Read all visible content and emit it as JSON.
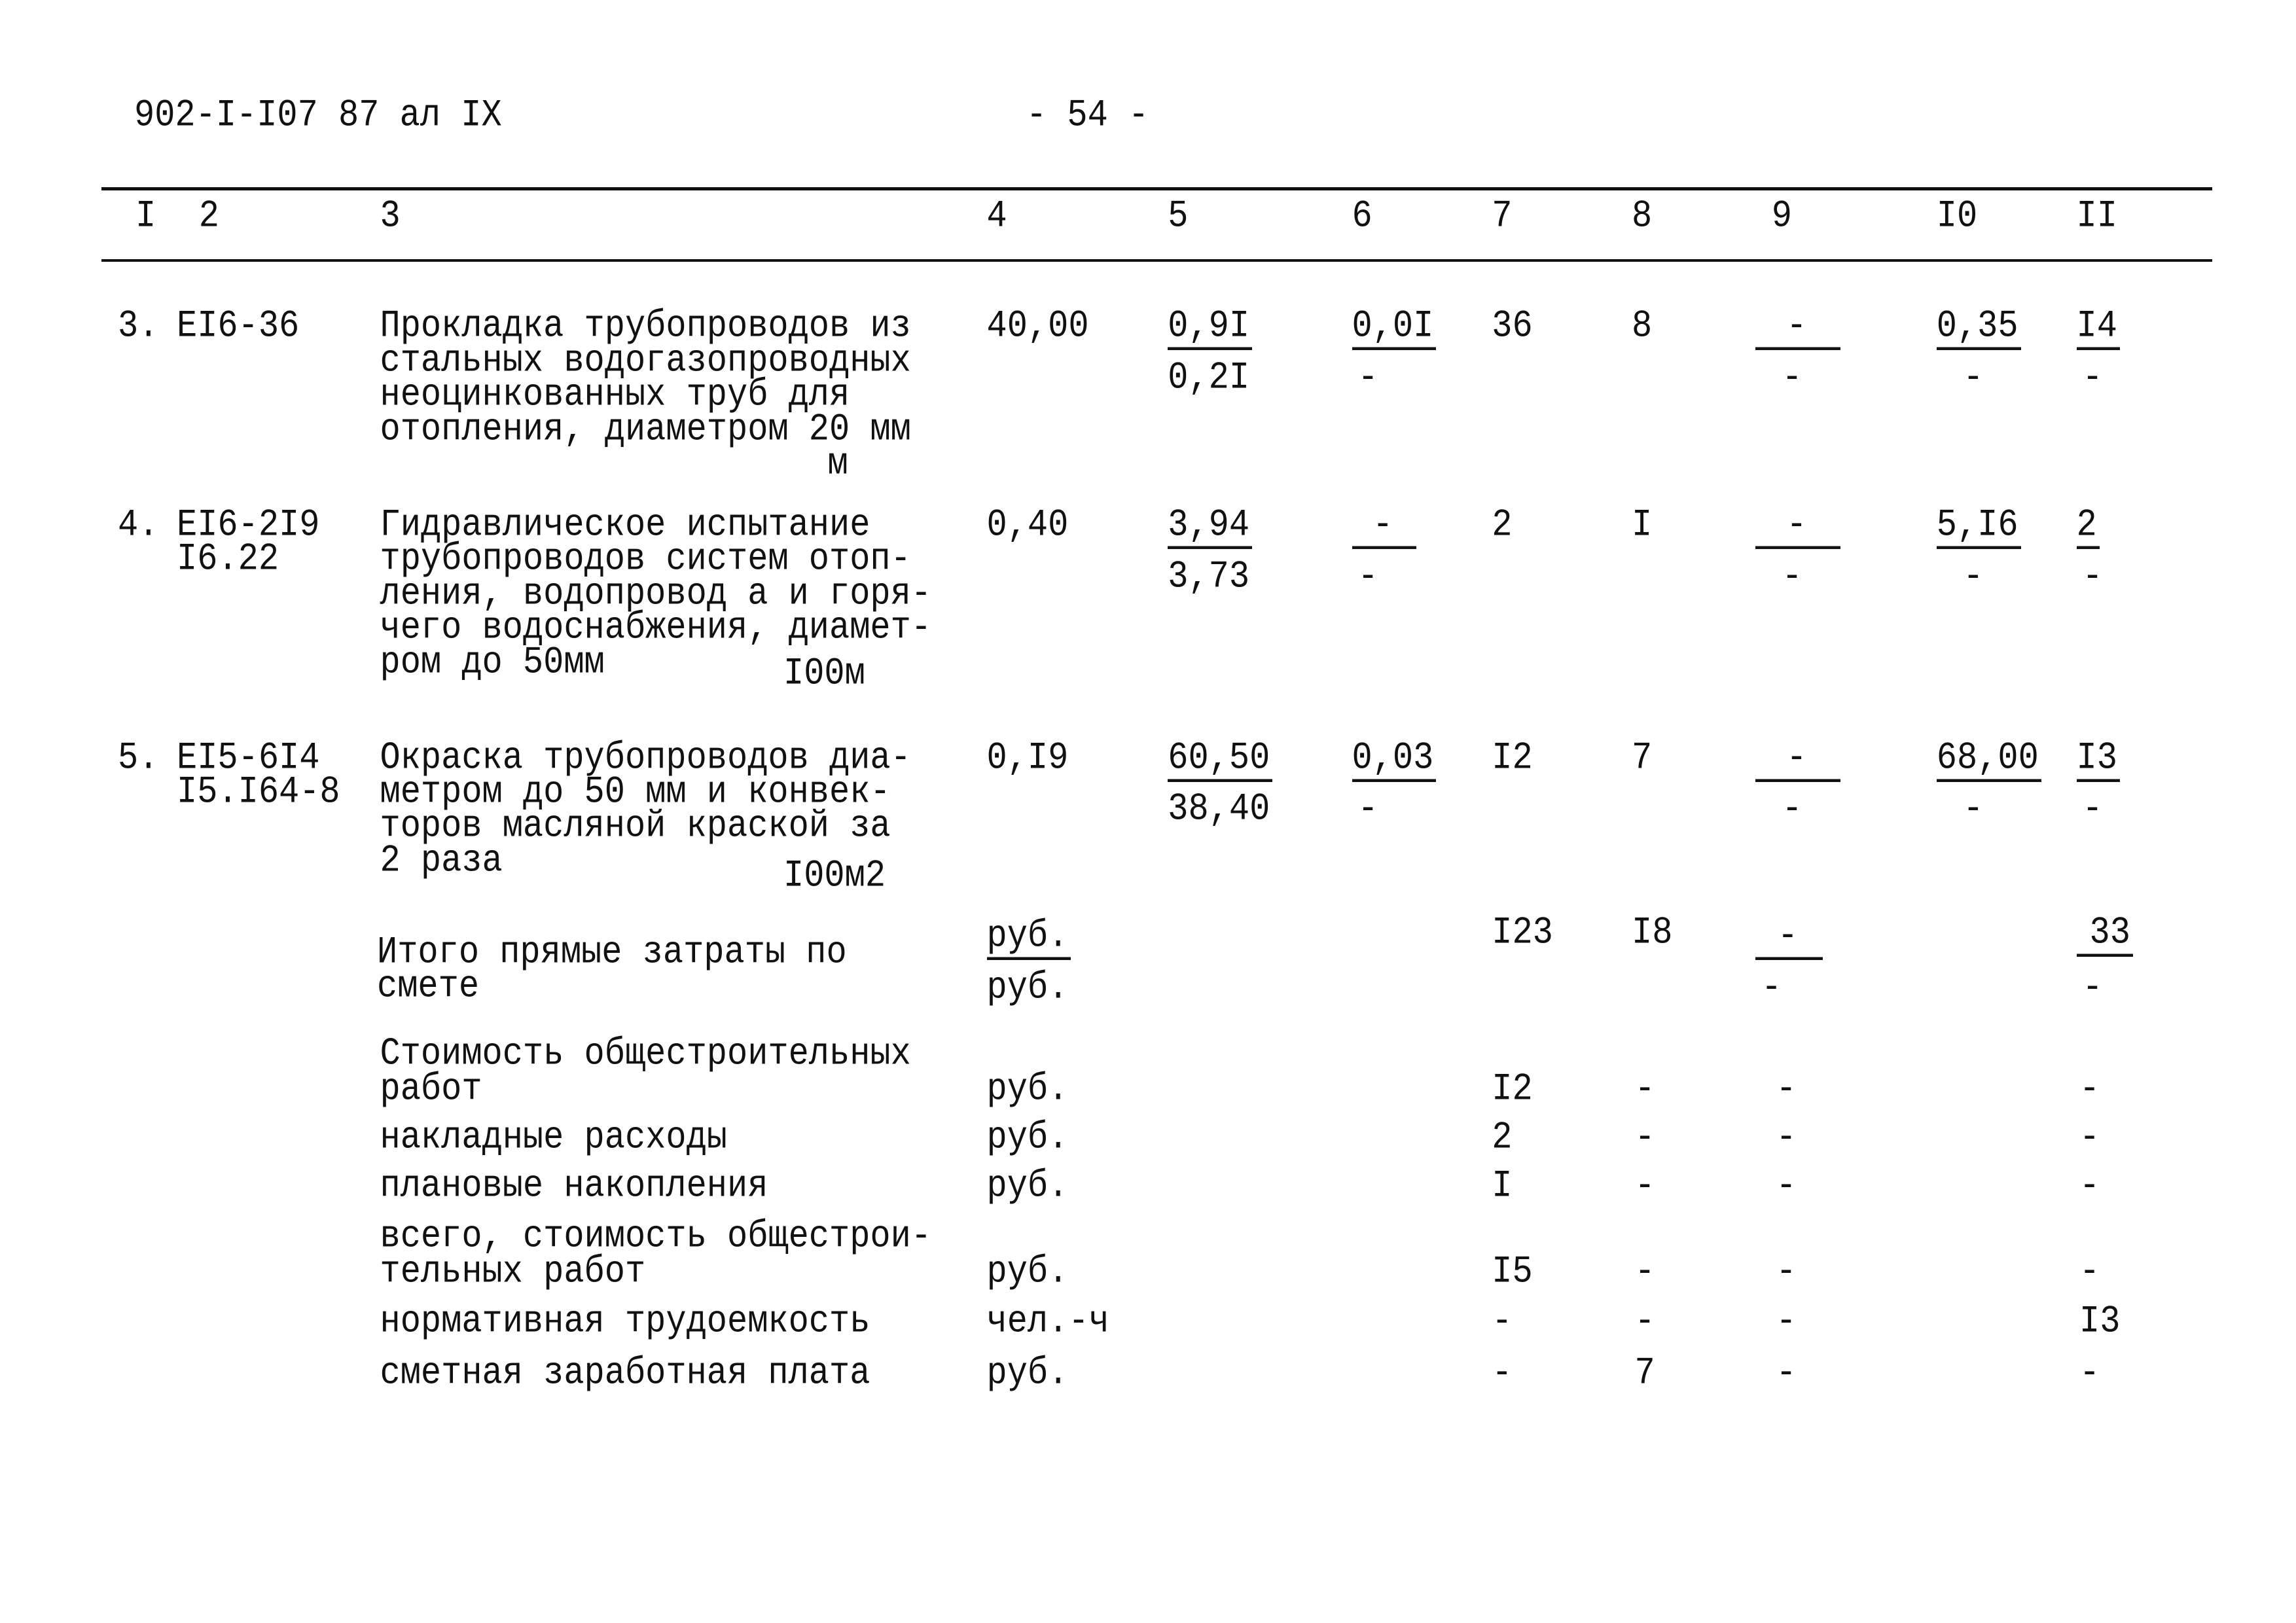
{
  "header": {
    "doc_code": "902-I-I07 87 ал IX",
    "page_number": "- 54 -"
  },
  "columns": [
    "I",
    "2",
    "3",
    "4",
    "5",
    "6",
    "7",
    "8",
    "9",
    "I0",
    "II"
  ],
  "items": [
    {
      "num": "3.",
      "code": [
        "EI6-36"
      ],
      "desc": [
        "Прокладка трубопроводов из",
        "стальных водогазопроводных",
        "неоцинкованных труб для",
        "отопления, диаметром 20 мм"
      ],
      "unit": "м",
      "c4": "40,00",
      "c5": [
        "0,9I",
        "0,2I"
      ],
      "c6": [
        "0,0I",
        "-"
      ],
      "c7": "36",
      "c8": "8",
      "c9": [
        "-",
        "-"
      ],
      "c10": [
        "0,35",
        "-"
      ],
      "c11": [
        "I4",
        "-"
      ]
    },
    {
      "num": "4.",
      "code": [
        "EI6-2I9",
        "I6.22"
      ],
      "desc": [
        "Гидравлическое испытание",
        "трубопроводов систем отоп-",
        "ления, водопровод а и горя-",
        "чего водоснабжения, диамет-",
        "ром до 50мм"
      ],
      "unit": "I00м",
      "c4": "0,40",
      "c5": [
        "3,94",
        "3,73"
      ],
      "c6": [
        "-",
        "-"
      ],
      "c7": "2",
      "c8": "I",
      "c9": [
        "-",
        "-"
      ],
      "c10": [
        "5,I6",
        "-"
      ],
      "c11": [
        "2",
        "-"
      ]
    },
    {
      "num": "5.",
      "code": [
        "EI5-6I4",
        "I5.I64-8"
      ],
      "desc": [
        "Окраска трубопроводов диа-",
        "метром до 50 мм и конвек-",
        "торов масляной краской за",
        "2 раза"
      ],
      "unit": "I00м2",
      "c4": "0,I9",
      "c5": [
        "60,50",
        "38,40"
      ],
      "c6": [
        "0,03",
        "-"
      ],
      "c7": "I2",
      "c8": "7",
      "c9": [
        "-",
        "-"
      ],
      "c10": [
        "68,00",
        "-"
      ],
      "c11": [
        "I3",
        "-"
      ]
    }
  ],
  "totals": {
    "desc": [
      "Итого прямые затраты по",
      "смете"
    ],
    "units": [
      "руб.",
      "руб."
    ],
    "c7": "I23",
    "c8": "I8",
    "c9": [
      "-",
      "-"
    ],
    "c11": [
      "33",
      "-"
    ]
  },
  "summary": [
    {
      "desc": [
        "Стоимость общестроительных",
        "работ"
      ],
      "unit": "руб.",
      "c7": "I2",
      "c8": "-",
      "c9": "-",
      "c11": "-"
    },
    {
      "desc": [
        "накладные расходы"
      ],
      "unit": "руб.",
      "c7": "2",
      "c8": "-",
      "c9": "-",
      "c11": "-"
    },
    {
      "desc": [
        "плановые накопления"
      ],
      "unit": "руб.",
      "c7": "I",
      "c8": "-",
      "c9": "-",
      "c11": "-"
    },
    {
      "desc": [
        "всего, стоимость общестрои-",
        "тельных работ"
      ],
      "unit": "руб.",
      "c7": "I5",
      "c8": "-",
      "c9": "-",
      "c11": "-"
    },
    {
      "desc": [
        "нормативная трудоемкость"
      ],
      "unit": "чел.-ч",
      "c7": "-",
      "c8": "-",
      "c9": "-",
      "c11": "I3"
    },
    {
      "desc": [
        "сметная заработная плата"
      ],
      "unit": "руб.",
      "c7": "-",
      "c8": "7",
      "c9": "-",
      "c11": "-"
    }
  ]
}
